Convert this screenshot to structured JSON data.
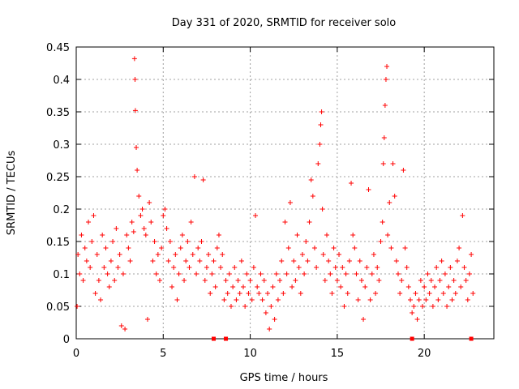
{
  "chart_data": {
    "type": "scatter",
    "title": "Day 331 of 2020, SRMTID for receiver solo",
    "xlabel": "GPS time / hours",
    "ylabel": "SRMTID / TECUs",
    "xlim": [
      0,
      24
    ],
    "ylim": [
      0,
      0.45
    ],
    "x_ticks": [
      0,
      5,
      10,
      15,
      20
    ],
    "y_ticks": [
      0,
      0.05,
      0.1,
      0.15,
      0.2,
      0.25,
      0.3,
      0.35,
      0.4,
      0.45
    ],
    "x_tick_labels": [
      "0",
      "5",
      "10",
      "15",
      "20"
    ],
    "y_tick_labels": [
      "0",
      "0.05",
      "0.1",
      "0.15",
      "0.2",
      "0.25",
      "0.3",
      "0.35",
      "0.4",
      "0.45"
    ],
    "grid": true,
    "marker": "plus",
    "color": "#ff0000",
    "series": [
      {
        "name": "SRMTID",
        "points": [
          [
            0.05,
            0.05
          ],
          [
            0.1,
            0.13
          ],
          [
            0.2,
            0.1
          ],
          [
            0.3,
            0.16
          ],
          [
            0.4,
            0.09
          ],
          [
            0.5,
            0.14
          ],
          [
            0.6,
            0.12
          ],
          [
            0.7,
            0.18
          ],
          [
            0.8,
            0.11
          ],
          [
            0.9,
            0.15
          ],
          [
            1.0,
            0.19
          ],
          [
            1.1,
            0.07
          ],
          [
            1.2,
            0.13
          ],
          [
            1.3,
            0.09
          ],
          [
            1.4,
            0.06
          ],
          [
            1.5,
            0.16
          ],
          [
            1.6,
            0.11
          ],
          [
            1.7,
            0.14
          ],
          [
            1.8,
            0.1
          ],
          [
            1.9,
            0.08
          ],
          [
            2.0,
            0.12
          ],
          [
            2.1,
            0.15
          ],
          [
            2.2,
            0.09
          ],
          [
            2.3,
            0.17
          ],
          [
            2.4,
            0.11
          ],
          [
            2.5,
            0.13
          ],
          [
            2.6,
            0.02
          ],
          [
            2.7,
            0.1
          ],
          [
            2.8,
            0.015
          ],
          [
            2.9,
            0.16
          ],
          [
            3.0,
            0.14
          ],
          [
            3.1,
            0.12
          ],
          [
            3.2,
            0.18
          ],
          [
            3.3,
            0.165
          ],
          [
            3.35,
            0.432
          ],
          [
            3.38,
            0.4
          ],
          [
            3.4,
            0.352
          ],
          [
            3.45,
            0.295
          ],
          [
            3.5,
            0.26
          ],
          [
            3.6,
            0.22
          ],
          [
            3.7,
            0.19
          ],
          [
            3.8,
            0.2
          ],
          [
            3.9,
            0.17
          ],
          [
            4.0,
            0.16
          ],
          [
            4.1,
            0.03
          ],
          [
            4.2,
            0.21
          ],
          [
            4.3,
            0.18
          ],
          [
            4.4,
            0.12
          ],
          [
            4.5,
            0.15
          ],
          [
            4.6,
            0.1
          ],
          [
            4.7,
            0.13
          ],
          [
            4.8,
            0.09
          ],
          [
            4.9,
            0.14
          ],
          [
            5.0,
            0.19
          ],
          [
            5.1,
            0.2
          ],
          [
            5.2,
            0.17
          ],
          [
            5.3,
            0.12
          ],
          [
            5.4,
            0.15
          ],
          [
            5.5,
            0.08
          ],
          [
            5.6,
            0.11
          ],
          [
            5.7,
            0.13
          ],
          [
            5.8,
            0.06
          ],
          [
            5.9,
            0.1
          ],
          [
            6.0,
            0.14
          ],
          [
            6.1,
            0.16
          ],
          [
            6.2,
            0.09
          ],
          [
            6.3,
            0.12
          ],
          [
            6.4,
            0.15
          ],
          [
            6.5,
            0.11
          ],
          [
            6.6,
            0.18
          ],
          [
            6.7,
            0.13
          ],
          [
            6.8,
            0.25
          ],
          [
            6.9,
            0.1
          ],
          [
            7.0,
            0.14
          ],
          [
            7.1,
            0.12
          ],
          [
            7.2,
            0.15
          ],
          [
            7.3,
            0.245
          ],
          [
            7.4,
            0.09
          ],
          [
            7.5,
            0.11
          ],
          [
            7.6,
            0.13
          ],
          [
            7.7,
            0.07
          ],
          [
            7.8,
            0.1
          ],
          [
            7.9,
            0.12
          ],
          [
            8.0,
            0.08
          ],
          [
            8.1,
            0.14
          ],
          [
            8.2,
            0.16
          ],
          [
            8.3,
            0.11
          ],
          [
            8.4,
            0.13
          ],
          [
            8.5,
            0.06
          ],
          [
            8.6,
            0.09
          ],
          [
            8.7,
            0.07
          ],
          [
            8.8,
            0.1
          ],
          [
            8.9,
            0.05
          ],
          [
            9.0,
            0.08
          ],
          [
            9.1,
            0.11
          ],
          [
            9.2,
            0.06
          ],
          [
            9.3,
            0.09
          ],
          [
            9.4,
            0.07
          ],
          [
            9.5,
            0.12
          ],
          [
            9.6,
            0.08
          ],
          [
            9.7,
            0.05
          ],
          [
            9.8,
            0.1
          ],
          [
            9.9,
            0.07
          ],
          [
            10.0,
            0.09
          ],
          [
            10.1,
            0.06
          ],
          [
            10.2,
            0.11
          ],
          [
            10.3,
            0.19
          ],
          [
            10.4,
            0.08
          ],
          [
            10.5,
            0.07
          ],
          [
            10.6,
            0.1
          ],
          [
            10.7,
            0.06
          ],
          [
            10.8,
            0.09
          ],
          [
            10.9,
            0.04
          ],
          [
            11.0,
            0.07
          ],
          [
            11.1,
            0.015
          ],
          [
            11.2,
            0.05
          ],
          [
            11.3,
            0.08
          ],
          [
            11.4,
            0.03
          ],
          [
            11.5,
            0.1
          ],
          [
            11.6,
            0.06
          ],
          [
            11.7,
            0.09
          ],
          [
            11.8,
            0.12
          ],
          [
            11.9,
            0.07
          ],
          [
            12.0,
            0.18
          ],
          [
            12.1,
            0.1
          ],
          [
            12.2,
            0.14
          ],
          [
            12.3,
            0.21
          ],
          [
            12.4,
            0.08
          ],
          [
            12.5,
            0.12
          ],
          [
            12.6,
            0.09
          ],
          [
            12.7,
            0.16
          ],
          [
            12.8,
            0.11
          ],
          [
            12.9,
            0.07
          ],
          [
            13.0,
            0.13
          ],
          [
            13.1,
            0.1
          ],
          [
            13.2,
            0.15
          ],
          [
            13.3,
            0.12
          ],
          [
            13.4,
            0.18
          ],
          [
            13.5,
            0.245
          ],
          [
            13.6,
            0.22
          ],
          [
            13.7,
            0.14
          ],
          [
            13.8,
            0.11
          ],
          [
            13.9,
            0.27
          ],
          [
            14.0,
            0.3
          ],
          [
            14.05,
            0.33
          ],
          [
            14.1,
            0.35
          ],
          [
            14.15,
            0.2
          ],
          [
            14.2,
            0.13
          ],
          [
            14.3,
            0.09
          ],
          [
            14.4,
            0.16
          ],
          [
            14.5,
            0.12
          ],
          [
            14.6,
            0.1
          ],
          [
            14.7,
            0.07
          ],
          [
            14.8,
            0.14
          ],
          [
            14.9,
            0.11
          ],
          [
            15.0,
            0.09
          ],
          [
            15.1,
            0.13
          ],
          [
            15.2,
            0.08
          ],
          [
            15.3,
            0.11
          ],
          [
            15.4,
            0.05
          ],
          [
            15.5,
            0.1
          ],
          [
            15.6,
            0.07
          ],
          [
            15.7,
            0.12
          ],
          [
            15.8,
            0.24
          ],
          [
            15.9,
            0.16
          ],
          [
            16.0,
            0.14
          ],
          [
            16.1,
            0.1
          ],
          [
            16.2,
            0.06
          ],
          [
            16.3,
            0.12
          ],
          [
            16.4,
            0.09
          ],
          [
            16.5,
            0.03
          ],
          [
            16.6,
            0.08
          ],
          [
            16.7,
            0.11
          ],
          [
            16.8,
            0.23
          ],
          [
            16.9,
            0.06
          ],
          [
            17.0,
            0.1
          ],
          [
            17.1,
            0.13
          ],
          [
            17.2,
            0.07
          ],
          [
            17.3,
            0.11
          ],
          [
            17.4,
            0.09
          ],
          [
            17.5,
            0.15
          ],
          [
            17.6,
            0.18
          ],
          [
            17.65,
            0.27
          ],
          [
            17.7,
            0.31
          ],
          [
            17.75,
            0.36
          ],
          [
            17.8,
            0.4
          ],
          [
            17.85,
            0.42
          ],
          [
            17.9,
            0.16
          ],
          [
            18.0,
            0.21
          ],
          [
            18.1,
            0.14
          ],
          [
            18.2,
            0.27
          ],
          [
            18.3,
            0.22
          ],
          [
            18.4,
            0.12
          ],
          [
            18.5,
            0.1
          ],
          [
            18.6,
            0.07
          ],
          [
            18.7,
            0.09
          ],
          [
            18.8,
            0.26
          ],
          [
            18.9,
            0.14
          ],
          [
            19.0,
            0.11
          ],
          [
            19.1,
            0.08
          ],
          [
            19.2,
            0.06
          ],
          [
            19.3,
            0.04
          ],
          [
            19.4,
            0.05
          ],
          [
            19.5,
            0.07
          ],
          [
            19.6,
            0.03
          ],
          [
            19.7,
            0.06
          ],
          [
            19.8,
            0.09
          ],
          [
            19.9,
            0.05
          ],
          [
            20.0,
            0.08
          ],
          [
            20.1,
            0.06
          ],
          [
            20.2,
            0.1
          ],
          [
            20.3,
            0.07
          ],
          [
            20.4,
            0.09
          ],
          [
            20.5,
            0.05
          ],
          [
            20.6,
            0.08
          ],
          [
            20.7,
            0.11
          ],
          [
            20.8,
            0.06
          ],
          [
            20.9,
            0.09
          ],
          [
            21.0,
            0.12
          ],
          [
            21.1,
            0.07
          ],
          [
            21.2,
            0.1
          ],
          [
            21.3,
            0.05
          ],
          [
            21.4,
            0.08
          ],
          [
            21.5,
            0.11
          ],
          [
            21.6,
            0.06
          ],
          [
            21.7,
            0.09
          ],
          [
            21.8,
            0.07
          ],
          [
            21.9,
            0.12
          ],
          [
            22.0,
            0.14
          ],
          [
            22.1,
            0.08
          ],
          [
            22.2,
            0.19
          ],
          [
            22.3,
            0.11
          ],
          [
            22.4,
            0.09
          ],
          [
            22.5,
            0.06
          ],
          [
            22.6,
            0.1
          ],
          [
            22.7,
            0.13
          ],
          [
            22.8,
            0.07
          ]
        ]
      }
    ],
    "gap_markers_x": [
      7.9,
      8.6,
      19.3,
      22.7
    ]
  }
}
